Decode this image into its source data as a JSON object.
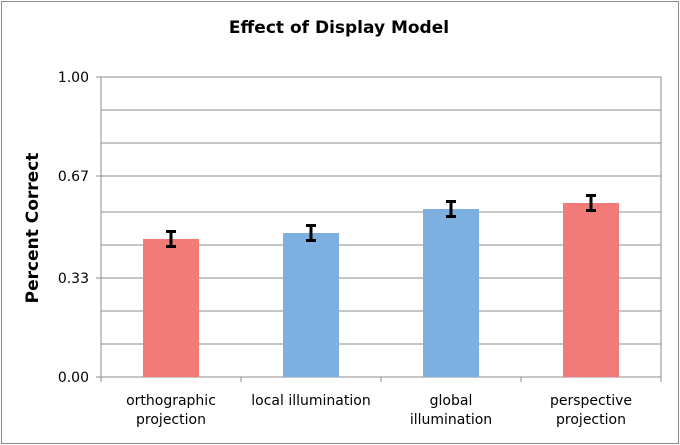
{
  "chart_data": {
    "type": "bar",
    "title": "Effect of Display Model",
    "xlabel": "",
    "ylabel": "Percent Correct",
    "categories": [
      [
        "orthographic",
        "projection"
      ],
      [
        "local illumination"
      ],
      [
        "global",
        "illumination"
      ],
      [
        "perspective",
        "projection"
      ]
    ],
    "values": [
      0.46,
      0.48,
      0.56,
      0.58
    ],
    "error": [
      0.025,
      0.025,
      0.025,
      0.025
    ],
    "bar_colors": [
      "#f07b77",
      "#7db0e0",
      "#7db0e0",
      "#f07b77"
    ],
    "ylim": [
      0,
      1
    ],
    "yticks": [
      0,
      0.33,
      0.67,
      1.0
    ],
    "ytick_labels": [
      "0.00",
      "0.33",
      "0.67",
      "1.00"
    ],
    "minor_gridlines": [
      0.11,
      0.22,
      0.44,
      0.55,
      0.78,
      0.89
    ],
    "grid": true,
    "legend": "none"
  }
}
